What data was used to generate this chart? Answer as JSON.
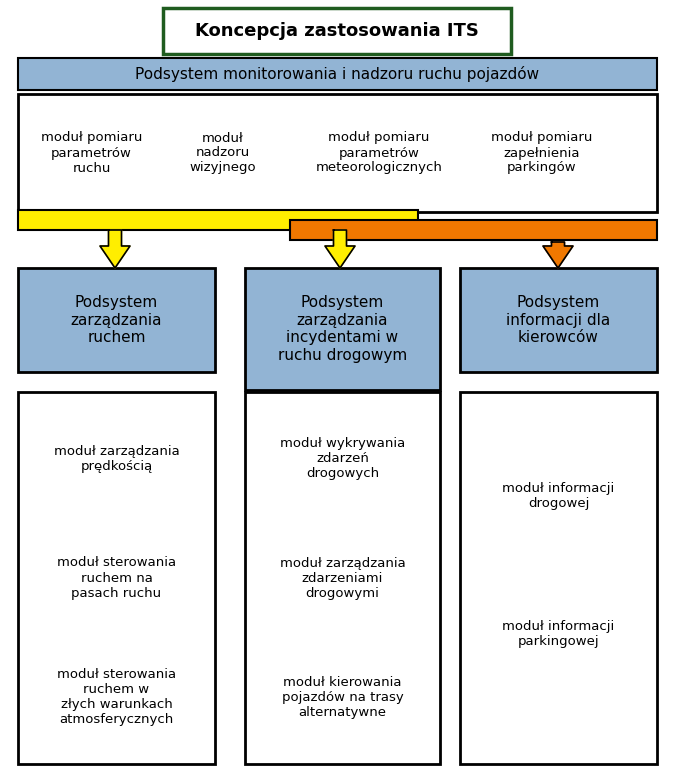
{
  "title": "Koncepcja zastosowania ITS",
  "title_box_color": "#ffffff",
  "title_border_color": "#1f5c1f",
  "subtitle": "Podsystem monitorowania i nadzoru ruchu pojazdów",
  "subtitle_bg": "#92b4d4",
  "modules_top": [
    "moduł pomiaru\nparametrów\nruchu",
    "moduł\nnadzoru\nwizyjnego",
    "moduł pomiaru\nparametrów\nmeteorologicznych",
    "moduł pomiaru\nzapełnienia\nparkingów"
  ],
  "bar_yellow_color": "#ffee00",
  "bar_orange_color": "#f07800",
  "subsystems": [
    "Podsystem\nzarządzania\nruchem",
    "Podsystem\nzarządzania\nincydentami w\nruchu drogowym",
    "Podsystem\ninformacji dla\nkierowców"
  ],
  "subsystem_bg": "#92b4d4",
  "arrow_yellow": "#ffee00",
  "arrow_orange": "#f07800",
  "bottom_modules": [
    [
      "moduł zarządzania\nprędkością",
      "moduł sterowania\nruchem na\npasach ruchu",
      "moduł sterowania\nruchem w\nzłych warunkach\natmosferycznych"
    ],
    [
      "moduł wykrywania\nzdarzeń\ndrogowych",
      "moduł zarządzania\nzdarzeniami\ndrogowymi",
      "moduł kierowania\npojazdów na trasy\nalternatywne"
    ],
    [
      "moduł informacji\ndrogowej",
      "moduł informacji\nparkingowej"
    ]
  ],
  "bg_color": "#ffffff",
  "border_color": "#000000",
  "fig_w": 6.75,
  "fig_h": 7.82,
  "dpi": 100
}
